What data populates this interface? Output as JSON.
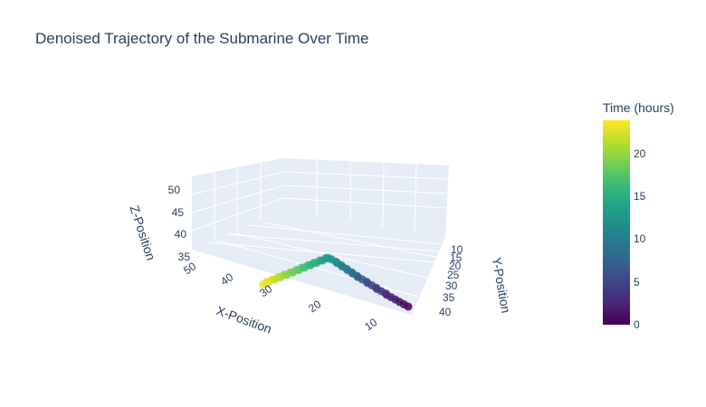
{
  "chart_data": {
    "type": "scatter3d",
    "title": "Denoised Trajectory of the Submarine Over Time",
    "xlabel": "X-Position",
    "ylabel": "Y-Position",
    "zlabel": "Z-Position",
    "x_ticks": [
      "50",
      "40",
      "30",
      "20",
      "10"
    ],
    "y_ticks": [
      "10",
      "15",
      "20",
      "25",
      "30",
      "35",
      "40"
    ],
    "z_ticks": [
      "50",
      "45",
      "40",
      "35"
    ],
    "colorbar": {
      "title": "Time (hours)",
      "ticks": [
        "20",
        "15",
        "10",
        "5",
        "0"
      ],
      "range": [
        0,
        24
      ],
      "colorscale": "Viridis"
    },
    "time": [
      0,
      0.5,
      1,
      1.5,
      2,
      2.5,
      3,
      3.5,
      4,
      4.5,
      5,
      5.5,
      6,
      6.5,
      7,
      7.5,
      8,
      8.5,
      9,
      9.5,
      10,
      10.5,
      11,
      11.5,
      12,
      12.5,
      13,
      13.5,
      14,
      14.5,
      15,
      15.5,
      16,
      16.5,
      17,
      17.5,
      18,
      18.5,
      19,
      19.5,
      20,
      20.5,
      21,
      21.5,
      22,
      22.5,
      23,
      23.5
    ],
    "x": [
      8,
      9,
      10,
      11,
      12,
      13,
      13,
      14,
      15,
      15,
      16,
      17,
      17,
      18,
      19,
      19,
      20,
      20,
      21,
      21,
      22,
      22,
      23,
      23,
      24,
      25,
      26,
      27,
      28,
      29,
      30,
      31,
      32,
      33,
      34,
      35,
      36,
      37,
      38,
      39,
      40,
      41,
      42,
      43,
      44,
      45,
      46,
      47
    ],
    "y": [
      40,
      39,
      38,
      37,
      36,
      35,
      34,
      33,
      32,
      31,
      30,
      29,
      28,
      27,
      26,
      25,
      24,
      23,
      22,
      21,
      20,
      19,
      18,
      17,
      16,
      16,
      17,
      17,
      18,
      18,
      19,
      19,
      20,
      20,
      21,
      21,
      22,
      22,
      23,
      23,
      24,
      24,
      25,
      25,
      26,
      26,
      27,
      27
    ],
    "z": [
      35,
      35.5,
      36,
      36.5,
      37,
      37.5,
      38,
      38.5,
      39,
      39.5,
      40,
      40.5,
      41,
      41.5,
      42,
      42.5,
      43,
      43.5,
      44,
      44.5,
      45,
      45.5,
      46,
      46.5,
      47,
      47,
      46.5,
      46,
      45.5,
      45,
      44.5,
      44,
      43.5,
      43,
      42.5,
      42,
      41.5,
      41,
      40.5,
      40,
      39.5,
      39,
      38.5,
      38,
      37.5,
      37,
      36.5,
      36
    ]
  }
}
